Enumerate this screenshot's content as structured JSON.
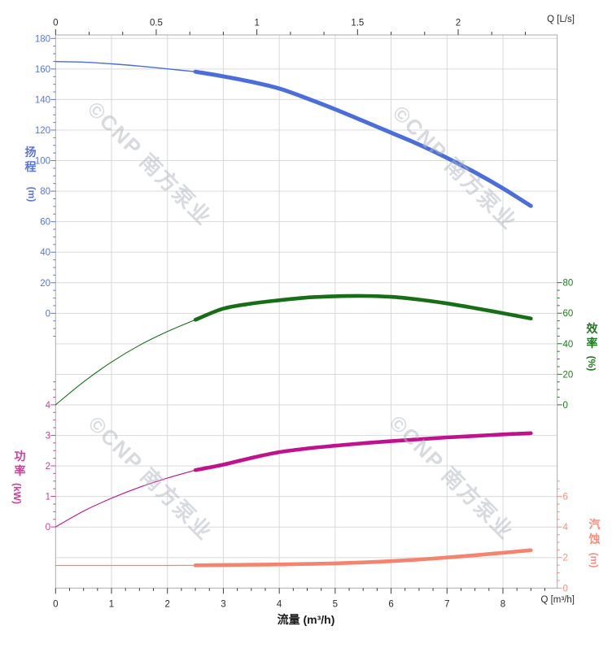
{
  "watermark": {
    "text": "©CNP 南方泵业"
  },
  "chart_data": {
    "type": "line",
    "title": "",
    "x_unit": "m³/h",
    "grid": true,
    "axes": {
      "top": {
        "unit_label": "Q [L/s]",
        "ticks": [
          0,
          0.5,
          1,
          1.5,
          2
        ],
        "minor_step": 0.1667,
        "max": 2.42,
        "tick_color": "#3a3a3a",
        "label_color": "#2b2b2b"
      },
      "bottom": {
        "title": "流量 (m³/h)",
        "unit_label": "Q [m³/h]",
        "ticks": [
          0,
          1,
          2,
          3,
          4,
          5,
          6,
          7,
          8
        ],
        "minor_step": 0.25,
        "max": 8.96,
        "tick_color": "#3a3a3a",
        "label_color": "#2b2b2b"
      },
      "head": {
        "title_cjk": "扬程",
        "title_unit": "(m)",
        "ticks": [
          180,
          160,
          140,
          120,
          100,
          80,
          60,
          40,
          20,
          0
        ],
        "minor_step": 5,
        "label_color": "#5b76d9",
        "curve_color": "#4a6edb"
      },
      "power": {
        "title_cjk": "功率",
        "title_unit": "(kW)",
        "ticks": [
          4,
          3,
          2,
          1,
          0
        ],
        "minor_step": 0.25,
        "label_color": "#cc3d9e",
        "curve_color": "#c0128e"
      },
      "efficiency": {
        "title_cjk": "效率",
        "title_unit": "(%)",
        "ticks": [
          80,
          60,
          40,
          20,
          0
        ],
        "minor_step": 5,
        "label_color": "#1e7a1e",
        "curve_color": "#166f16"
      },
      "npsh": {
        "title_cjk": "汽蚀",
        "title_unit": "(m)",
        "ticks": [
          6,
          4,
          2,
          0
        ],
        "minor_step": 0.5,
        "label_color": "#f5907f",
        "curve_color": "#f5846f"
      }
    },
    "series": [
      {
        "name": "head",
        "axis": "head",
        "unit": "m",
        "thin": [
          [
            0,
            164.9
          ],
          [
            0.5,
            164.5
          ],
          [
            1,
            163.4
          ],
          [
            1.5,
            161.9
          ],
          [
            2,
            160.1
          ],
          [
            2.5,
            158.2
          ]
        ],
        "thick": [
          [
            2.5,
            158.2
          ],
          [
            3,
            155.2
          ],
          [
            3.5,
            151.6
          ],
          [
            4,
            147.2
          ],
          [
            4.5,
            140.7
          ],
          [
            5,
            133.6
          ],
          [
            5.5,
            126.0
          ],
          [
            6,
            118.3
          ],
          [
            6.5,
            110.5
          ],
          [
            7,
            101.8
          ],
          [
            7.5,
            92.3
          ],
          [
            8,
            81.8
          ],
          [
            8.5,
            70.3
          ]
        ]
      },
      {
        "name": "efficiency",
        "axis": "efficiency",
        "unit": "%",
        "thin": [
          [
            0,
            0
          ],
          [
            0.5,
            15
          ],
          [
            1,
            28
          ],
          [
            1.5,
            39
          ],
          [
            2,
            48
          ],
          [
            2.5,
            55.7
          ]
        ],
        "thick": [
          [
            2.5,
            55.7
          ],
          [
            3,
            63.0
          ],
          [
            3.5,
            66.3
          ],
          [
            4,
            68.5
          ],
          [
            4.5,
            70.3
          ],
          [
            5,
            71.1
          ],
          [
            5.5,
            71.3
          ],
          [
            6,
            70.7
          ],
          [
            6.5,
            68.9
          ],
          [
            7,
            66.4
          ],
          [
            7.5,
            63.3
          ],
          [
            8,
            60.0
          ],
          [
            8.5,
            56.5
          ]
        ]
      },
      {
        "name": "power",
        "axis": "power",
        "unit": "kW",
        "thin": [
          [
            0,
            0
          ],
          [
            0.5,
            0.52
          ],
          [
            1,
            0.94
          ],
          [
            1.5,
            1.3
          ],
          [
            2,
            1.6
          ],
          [
            2.5,
            1.86
          ]
        ],
        "thick": [
          [
            2.5,
            1.86
          ],
          [
            3,
            2.04
          ],
          [
            3.5,
            2.26
          ],
          [
            4,
            2.45
          ],
          [
            4.5,
            2.57
          ],
          [
            5,
            2.66
          ],
          [
            5.5,
            2.74
          ],
          [
            6,
            2.81
          ],
          [
            6.5,
            2.87
          ],
          [
            7,
            2.93
          ],
          [
            7.5,
            2.98
          ],
          [
            8,
            3.03
          ],
          [
            8.5,
            3.07
          ]
        ]
      },
      {
        "name": "npsh",
        "axis": "npsh",
        "unit": "m",
        "thin": [
          [
            0,
            1.48
          ],
          [
            1,
            1.48
          ],
          [
            2,
            1.48
          ],
          [
            2.5,
            1.49
          ]
        ],
        "thick": [
          [
            2.5,
            1.49
          ],
          [
            3,
            1.51
          ],
          [
            3.5,
            1.53
          ],
          [
            4,
            1.55
          ],
          [
            4.5,
            1.58
          ],
          [
            5,
            1.62
          ],
          [
            5.5,
            1.68
          ],
          [
            6,
            1.76
          ],
          [
            6.5,
            1.87
          ],
          [
            7,
            2.0
          ],
          [
            7.5,
            2.15
          ],
          [
            8,
            2.31
          ],
          [
            8.5,
            2.48
          ]
        ]
      }
    ]
  }
}
